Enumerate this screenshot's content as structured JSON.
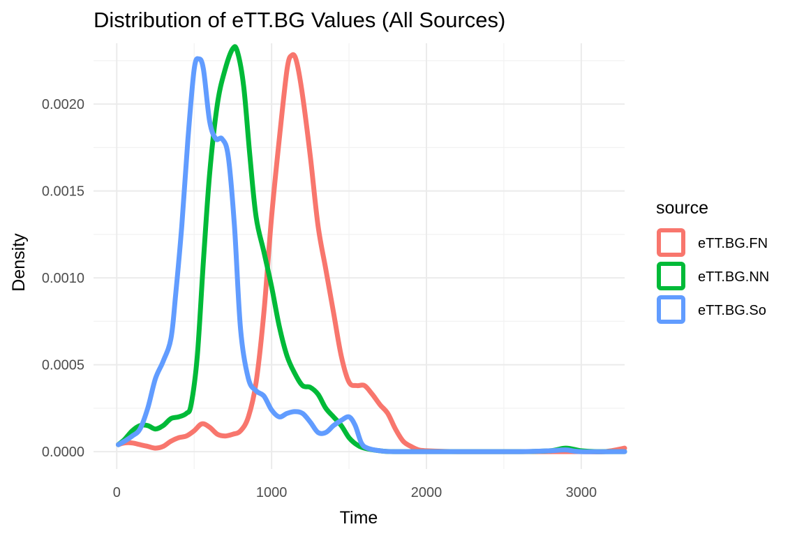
{
  "chart_data": {
    "type": "line",
    "title": "Distribution of eTT.BG Values (All Sources)",
    "xlabel": "Time",
    "ylabel": "Density",
    "xlim": [
      -150,
      3280
    ],
    "ylim": [
      -0.0001,
      0.00235
    ],
    "x_ticks": [
      0,
      1000,
      2000,
      3000
    ],
    "x_tick_labels": [
      "0",
      "1000",
      "2000",
      "3000"
    ],
    "y_ticks": [
      0,
      0.0005,
      0.001,
      0.0015,
      0.002
    ],
    "y_tick_labels": [
      "0.0000",
      "0.0005",
      "0.0010",
      "0.0015",
      "0.0020"
    ],
    "grid": true,
    "legend": {
      "title": "source",
      "position": "right"
    },
    "series": [
      {
        "name": "eTT.BG.FN",
        "color": "#F8766D",
        "points": [
          [
            10,
            4e-05
          ],
          [
            50,
            5e-05
          ],
          [
            100,
            5e-05
          ],
          [
            150,
            4e-05
          ],
          [
            200,
            3e-05
          ],
          [
            250,
            2e-05
          ],
          [
            300,
            3e-05
          ],
          [
            350,
            6e-05
          ],
          [
            400,
            8e-05
          ],
          [
            450,
            9e-05
          ],
          [
            500,
            0.00012
          ],
          [
            550,
            0.00016
          ],
          [
            600,
            0.00014
          ],
          [
            650,
            0.0001
          ],
          [
            700,
            9e-05
          ],
          [
            750,
            0.0001
          ],
          [
            800,
            0.00012
          ],
          [
            850,
            0.0002
          ],
          [
            900,
            0.0004
          ],
          [
            950,
            0.0008
          ],
          [
            1000,
            0.00135
          ],
          [
            1050,
            0.0018
          ],
          [
            1100,
            0.0022
          ],
          [
            1130,
            0.00228
          ],
          [
            1160,
            0.00225
          ],
          [
            1200,
            0.00205
          ],
          [
            1250,
            0.0017
          ],
          [
            1300,
            0.0013
          ],
          [
            1350,
            0.00105
          ],
          [
            1400,
            0.0008
          ],
          [
            1450,
            0.00055
          ],
          [
            1500,
            0.0004
          ],
          [
            1550,
            0.00038
          ],
          [
            1600,
            0.00038
          ],
          [
            1650,
            0.00033
          ],
          [
            1700,
            0.00027
          ],
          [
            1750,
            0.00022
          ],
          [
            1800,
            0.00013
          ],
          [
            1850,
            6e-05
          ],
          [
            1900,
            3e-05
          ],
          [
            1950,
            1e-05
          ],
          [
            2000,
            5e-06
          ],
          [
            2200,
            0
          ],
          [
            2500,
            0
          ],
          [
            2800,
            0
          ],
          [
            3000,
            0
          ],
          [
            3150,
            0
          ],
          [
            3280,
            2e-05
          ]
        ]
      },
      {
        "name": "eTT.BG.NN",
        "color": "#00BA38",
        "points": [
          [
            10,
            4e-05
          ],
          [
            50,
            7e-05
          ],
          [
            100,
            0.00012
          ],
          [
            150,
            0.00015
          ],
          [
            200,
            0.00015
          ],
          [
            250,
            0.00013
          ],
          [
            300,
            0.00015
          ],
          [
            350,
            0.00019
          ],
          [
            400,
            0.0002
          ],
          [
            450,
            0.00022
          ],
          [
            480,
            0.00027
          ],
          [
            520,
            0.00055
          ],
          [
            560,
            0.0011
          ],
          [
            600,
            0.0016
          ],
          [
            650,
            0.002
          ],
          [
            700,
            0.0022
          ],
          [
            750,
            0.00232
          ],
          [
            780,
            0.0023
          ],
          [
            820,
            0.0021
          ],
          [
            860,
            0.0017
          ],
          [
            900,
            0.00135
          ],
          [
            950,
            0.00115
          ],
          [
            1000,
            0.00095
          ],
          [
            1050,
            0.00072
          ],
          [
            1100,
            0.00055
          ],
          [
            1150,
            0.00045
          ],
          [
            1200,
            0.00038
          ],
          [
            1250,
            0.00037
          ],
          [
            1300,
            0.00033
          ],
          [
            1350,
            0.00025
          ],
          [
            1400,
            0.0002
          ],
          [
            1450,
            0.00015
          ],
          [
            1500,
            8e-05
          ],
          [
            1550,
            4e-05
          ],
          [
            1600,
            2e-05
          ],
          [
            1700,
            5e-06
          ],
          [
            1800,
            0
          ],
          [
            2200,
            0
          ],
          [
            2600,
            0
          ],
          [
            2800,
            5e-06
          ],
          [
            2900,
            2e-05
          ],
          [
            3000,
            5e-06
          ],
          [
            3100,
            0
          ],
          [
            3280,
            0
          ]
        ]
      },
      {
        "name": "eTT.BG.So",
        "color": "#619CFF",
        "points": [
          [
            10,
            4e-05
          ],
          [
            50,
            6e-05
          ],
          [
            100,
            9e-05
          ],
          [
            150,
            0.00013
          ],
          [
            200,
            0.00025
          ],
          [
            250,
            0.00042
          ],
          [
            300,
            0.00052
          ],
          [
            350,
            0.00065
          ],
          [
            380,
            0.0009
          ],
          [
            420,
            0.0013
          ],
          [
            460,
            0.0018
          ],
          [
            500,
            0.0022
          ],
          [
            530,
            0.00226
          ],
          [
            560,
            0.0022
          ],
          [
            600,
            0.0019
          ],
          [
            640,
            0.0018
          ],
          [
            680,
            0.0018
          ],
          [
            720,
            0.0017
          ],
          [
            760,
            0.0013
          ],
          [
            800,
            0.0007
          ],
          [
            850,
            0.00042
          ],
          [
            900,
            0.00035
          ],
          [
            950,
            0.00032
          ],
          [
            1000,
            0.00024
          ],
          [
            1050,
            0.0002
          ],
          [
            1100,
            0.00022
          ],
          [
            1150,
            0.00023
          ],
          [
            1200,
            0.00022
          ],
          [
            1250,
            0.00017
          ],
          [
            1300,
            0.00011
          ],
          [
            1350,
            0.00011
          ],
          [
            1400,
            0.00015
          ],
          [
            1450,
            0.00018
          ],
          [
            1500,
            0.0002
          ],
          [
            1540,
            0.00015
          ],
          [
            1580,
            5e-05
          ],
          [
            1620,
            2e-05
          ],
          [
            1700,
            5e-06
          ],
          [
            1800,
            0
          ],
          [
            2200,
            0
          ],
          [
            2600,
            0
          ],
          [
            2800,
            5e-06
          ],
          [
            2900,
            1e-05
          ],
          [
            3000,
            0
          ],
          [
            3280,
            0
          ]
        ]
      }
    ]
  }
}
